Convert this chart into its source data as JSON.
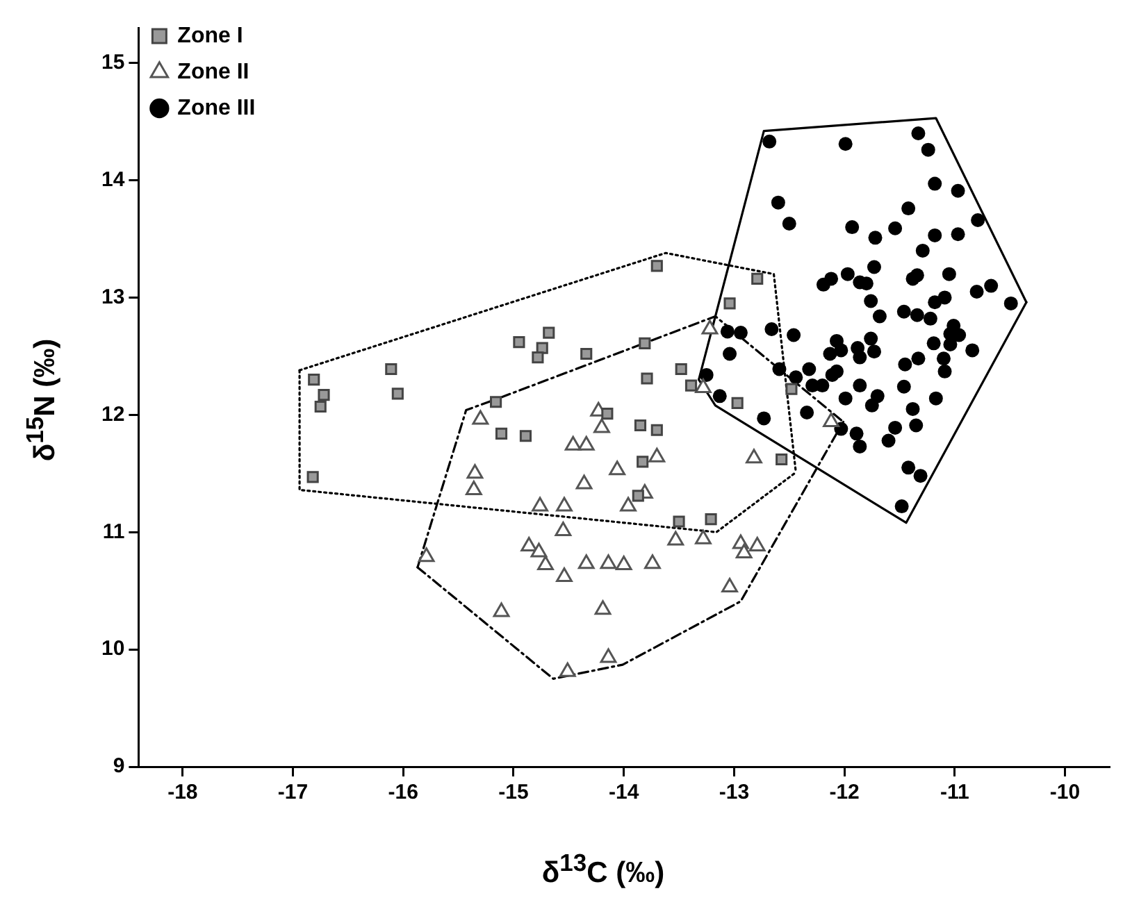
{
  "chart_data": {
    "type": "scatter",
    "xlabel": "δ$^{13}$C (‰)",
    "ylabel": "δ$^{15}$N (‰)",
    "xlim": [
      -18.4,
      -9.6
    ],
    "ylim": [
      9,
      15.3
    ],
    "xticks": [
      -18,
      -17,
      -16,
      -15,
      -14,
      -13,
      -12,
      -11,
      -10
    ],
    "yticks": [
      9,
      10,
      11,
      12,
      13,
      14,
      15
    ],
    "grid": false,
    "legend": "top left",
    "series": [
      {
        "name": "Zone I",
        "type": "scatter",
        "marker": "square",
        "color": "#999999",
        "x": [
          -16.81,
          -16.72,
          -16.75,
          -16.82,
          -16.11,
          -16.05,
          -15.16,
          -14.95,
          -15.11,
          -14.89,
          -14.68,
          -14.74,
          -14.78,
          -14.34,
          -13.7,
          -12.79,
          -13.04,
          -13.81,
          -13.48,
          -13.79,
          -13.39,
          -12.97,
          -12.48,
          -12.57,
          -14.15,
          -13.85,
          -13.7,
          -13.83,
          -13.87,
          -13.5,
          -13.21
        ],
        "values": [
          12.3,
          12.17,
          12.07,
          11.47,
          12.39,
          12.18,
          12.11,
          12.62,
          11.84,
          11.82,
          12.7,
          12.57,
          12.49,
          12.52,
          13.27,
          13.16,
          12.95,
          12.61,
          12.39,
          12.31,
          12.25,
          12.1,
          12.22,
          11.62,
          12.01,
          11.91,
          11.87,
          11.6,
          11.31,
          11.09,
          11.11
        ]
      },
      {
        "name": "Zone II",
        "type": "scatter",
        "marker": "triangle",
        "color": "#555555",
        "x": [
          -15.3,
          -15.35,
          -15.36,
          -14.46,
          -14.34,
          -14.36,
          -14.76,
          -14.54,
          -14.55,
          -14.86,
          -14.77,
          -14.71,
          -14.54,
          -14.34,
          -15.79,
          -15.11,
          -14.51,
          -14.2,
          -14.23,
          -13.7,
          -14.06,
          -13.81,
          -13.96,
          -13.22,
          -13.28,
          -12.82,
          -13.53,
          -13.28,
          -12.94,
          -12.91,
          -12.79,
          -14.14,
          -14.0,
          -13.74,
          -13.04,
          -14.19,
          -14.14,
          -12.12
        ],
        "values": [
          11.96,
          11.5,
          11.36,
          11.74,
          11.74,
          11.41,
          11.22,
          11.22,
          11.01,
          10.88,
          10.83,
          10.72,
          10.62,
          10.73,
          10.79,
          10.32,
          9.81,
          11.89,
          12.03,
          11.64,
          11.53,
          11.33,
          11.22,
          12.73,
          12.23,
          11.63,
          10.93,
          10.94,
          10.9,
          10.82,
          10.88,
          10.73,
          10.72,
          10.73,
          10.53,
          10.34,
          9.93,
          11.94
        ]
      },
      {
        "name": "Zone III",
        "type": "scatter",
        "marker": "circle",
        "color": "#000000",
        "x": [
          -12.68,
          -11.99,
          -11.33,
          -11.24,
          -11.18,
          -10.97,
          -12.6,
          -12.5,
          -11.93,
          -11.72,
          -11.54,
          -11.42,
          -11.18,
          -10.97,
          -10.79,
          -11.29,
          -11.73,
          -12.19,
          -12.12,
          -11.97,
          -11.86,
          -11.8,
          -11.76,
          -11.68,
          -11.38,
          -11.34,
          -11.05,
          -10.8,
          -10.67,
          -10.49,
          -11.18,
          -11.09,
          -11.46,
          -11.34,
          -11.22,
          -11.01,
          -11.04,
          -10.96,
          -11.19,
          -11.04,
          -10.84,
          -11.1,
          -11.09,
          -11.33,
          -11.45,
          -11.46,
          -11.38,
          -11.35,
          -11.17,
          -11.54,
          -11.6,
          -11.86,
          -11.7,
          -11.75,
          -11.76,
          -11.73,
          -11.88,
          -11.86,
          -12.07,
          -12.03,
          -12.13,
          -12.07,
          -12.11,
          -11.99,
          -12.03,
          -11.89,
          -11.86,
          -11.42,
          -11.31,
          -11.48,
          -12.32,
          -12.29,
          -12.2,
          -12.44,
          -12.59,
          -12.34,
          -12.73,
          -12.46,
          -12.66,
          -13.06,
          -12.94,
          -13.04,
          -13.25,
          -13.13
        ],
        "values": [
          14.33,
          14.31,
          14.4,
          14.26,
          13.97,
          13.91,
          13.81,
          13.63,
          13.6,
          13.51,
          13.59,
          13.76,
          13.53,
          13.54,
          13.66,
          13.4,
          13.26,
          13.11,
          13.16,
          13.2,
          13.13,
          13.12,
          12.97,
          12.84,
          13.16,
          13.19,
          13.2,
          13.05,
          13.1,
          12.95,
          12.96,
          13.0,
          12.88,
          12.85,
          12.82,
          12.76,
          12.69,
          12.68,
          12.61,
          12.6,
          12.55,
          12.48,
          12.37,
          12.48,
          12.43,
          12.24,
          12.05,
          11.91,
          12.14,
          11.89,
          11.78,
          12.25,
          12.16,
          12.08,
          12.65,
          12.54,
          12.57,
          12.49,
          12.63,
          12.55,
          12.52,
          12.37,
          12.34,
          12.14,
          11.88,
          11.84,
          11.73,
          11.55,
          11.48,
          11.22,
          12.39,
          12.25,
          12.25,
          12.32,
          12.39,
          12.02,
          11.97,
          12.68,
          12.73,
          12.71,
          12.7,
          12.52,
          12.34,
          12.16
        ]
      },
      {
        "type": "line",
        "line_style": "dotted",
        "marker": "none",
        "color": "#000000",
        "x": [
          -16.94,
          -13.62,
          -12.64,
          -12.44
        ],
        "values": [
          12.38,
          13.38,
          13.2,
          11.51
        ]
      },
      {
        "type": "line",
        "line_style": "dotted",
        "marker": "none",
        "color": "#000000",
        "x": [
          -16.94,
          -16.94,
          -13.16,
          -12.44
        ],
        "values": [
          12.38,
          11.36,
          11.0,
          11.51
        ]
      },
      {
        "type": "line",
        "line_style": "dashed",
        "marker": "none",
        "color": "#000000",
        "x": [
          -15.87,
          -15.43,
          -15.11,
          -13.17,
          -12.01
        ],
        "values": [
          10.7,
          12.04,
          12.15,
          12.84,
          11.94
        ]
      },
      {
        "type": "line",
        "line_style": "dashed",
        "marker": "none",
        "color": "#000000",
        "x": [
          -15.87,
          -14.64,
          -14.01,
          -12.94,
          -12.01
        ],
        "values": [
          10.7,
          9.75,
          9.87,
          10.41,
          11.94
        ]
      },
      {
        "type": "line",
        "line_style": "solid",
        "marker": "none",
        "color": "#000000",
        "x": [
          -13.32,
          -12.73,
          -11.17,
          -10.35
        ],
        "values": [
          12.3,
          14.42,
          14.53,
          12.96
        ]
      },
      {
        "type": "line",
        "line_style": "solid",
        "marker": "none",
        "color": "#000000",
        "x": [
          -13.32,
          -13.17,
          -11.44,
          -10.35
        ],
        "values": [
          12.3,
          12.08,
          11.08,
          12.96
        ]
      }
    ]
  }
}
